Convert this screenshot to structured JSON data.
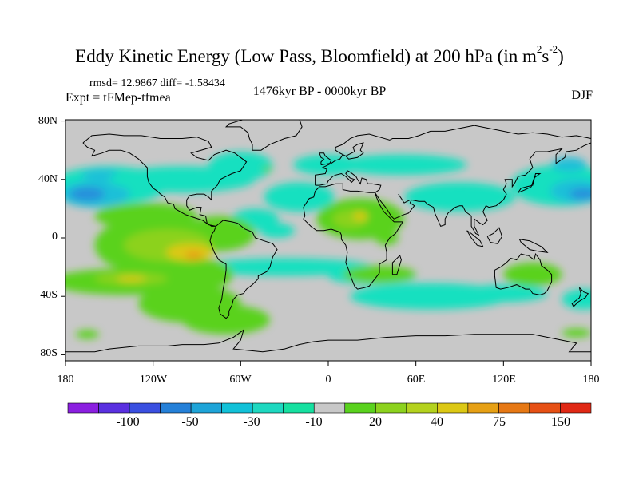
{
  "title": {
    "main": "Eddy Kinetic Energy (Low Pass, Bloomfield) at 200 hPa (in m",
    "sup1": "2",
    "mid": "s",
    "sup2": "-2",
    "end": ")"
  },
  "stats": "rmsd= 12.9867 diff= -1.58434",
  "expt": "Expt = tFMep-tfmea",
  "period": "1476kyr BP - 0000kyr BP",
  "season": "DJF",
  "axes": {
    "y_ticks": [
      "80N",
      "40N",
      "0",
      "40S",
      "80S"
    ],
    "x_ticks": [
      "180",
      "120W",
      "60W",
      "0",
      "60E",
      "120E",
      "180"
    ]
  },
  "colorbar": {
    "colors": [
      "#8b1fe0",
      "#5a30e0",
      "#3a4fe0",
      "#2580d8",
      "#1ea4d8",
      "#12c1d8",
      "#1ed8c0",
      "#16e0a0",
      "#c8c8c8",
      "#5ad21e",
      "#8cd21e",
      "#b4d21e",
      "#dcc814",
      "#e6a014",
      "#e67814",
      "#e65014",
      "#e02814"
    ],
    "labels": [
      "-100",
      "-50",
      "-30",
      "-10",
      "20",
      "40",
      "75",
      "150"
    ]
  },
  "field_colors": {
    "background": "#c8c8c8",
    "neg_light": "#16e0c0",
    "neg_mid": "#1ec0d8",
    "neg_dark": "#2590dc",
    "pos_light": "#5ad21e",
    "pos_mid": "#8cd21e",
    "pos_high": "#dcc814",
    "pos_peak": "#e6a014"
  }
}
